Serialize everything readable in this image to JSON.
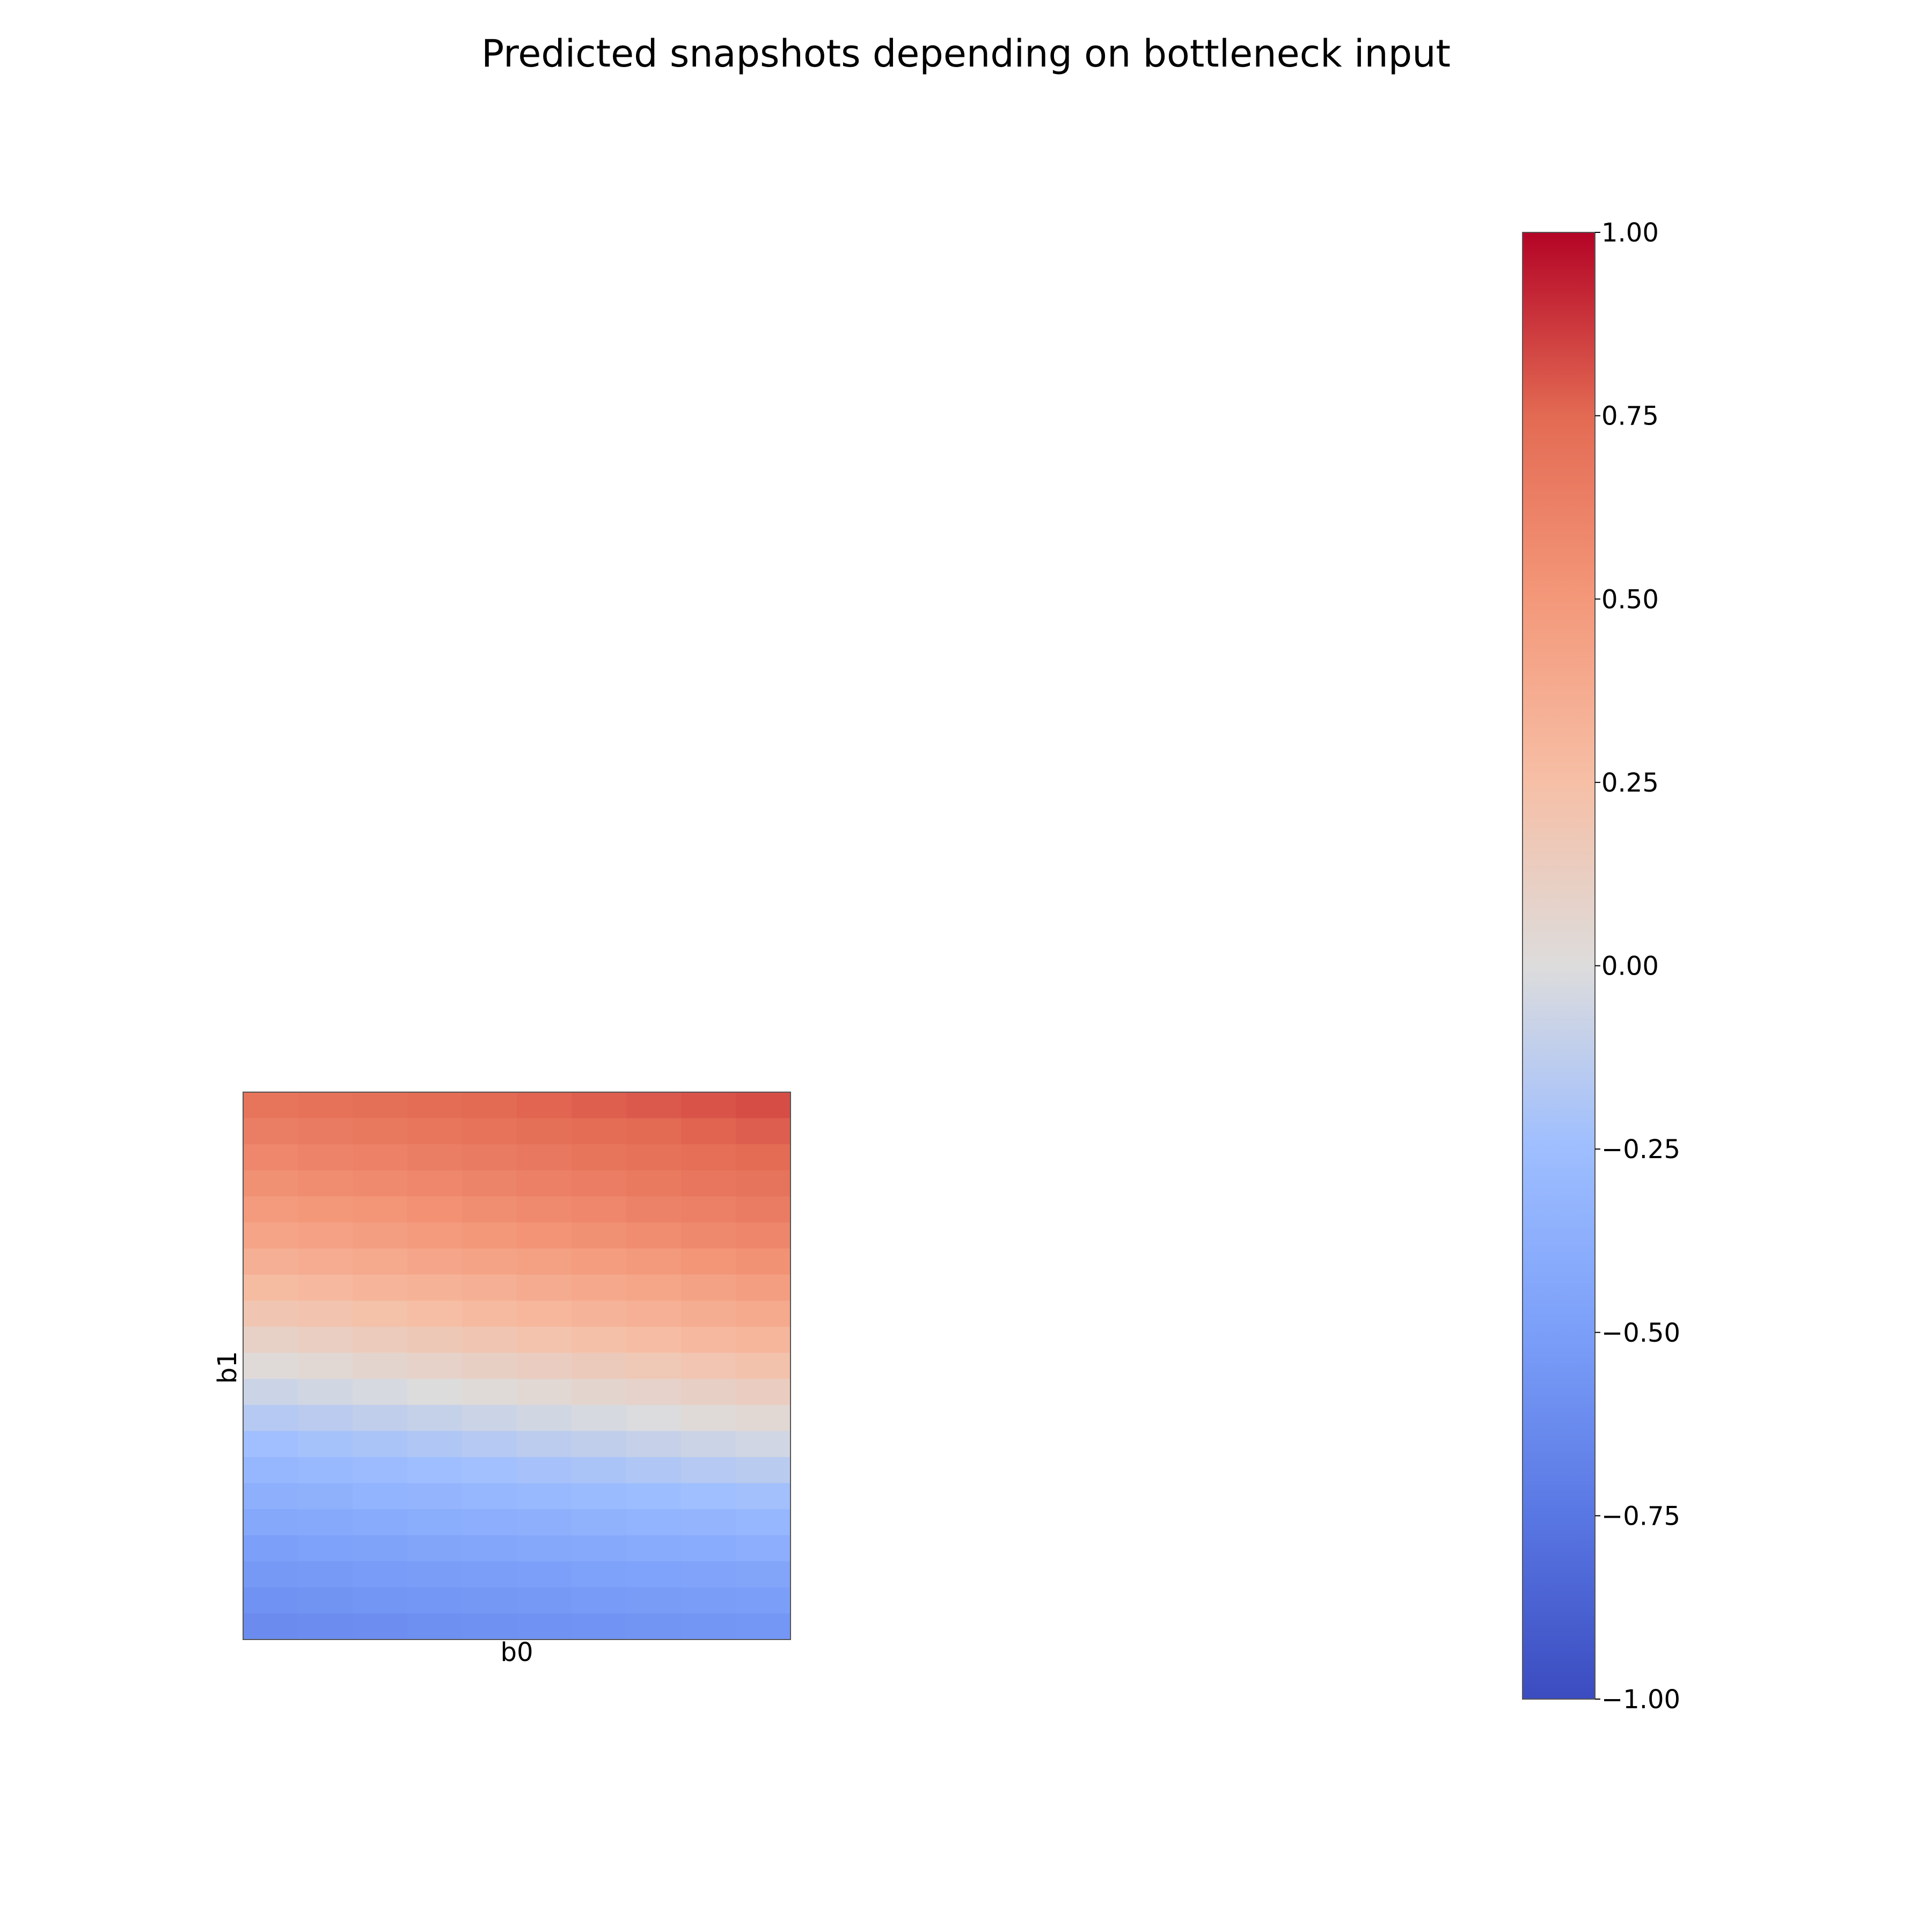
{
  "chart_data": {
    "type": "heatmap",
    "title": "Predicted snapshots depending on bottleneck input",
    "xlabel": "b0",
    "ylabel": "b1",
    "grid": false,
    "colormap": "coolwarm",
    "colorbar": {
      "min": -1.0,
      "max": 1.0,
      "ticks": [
        "1.00",
        "0.75",
        "0.50",
        "0.25",
        "0.00",
        "−0.25",
        "−0.50",
        "−0.75",
        "−1.00"
      ],
      "tick_values": [
        1.0,
        0.75,
        0.5,
        0.25,
        0.0,
        -0.25,
        -0.5,
        -0.75,
        -1.0
      ]
    },
    "n_cols": 10,
    "n_rows": 21,
    "row_left_values": [
      0.69,
      0.64,
      0.59,
      0.54,
      0.48,
      0.42,
      0.35,
      0.27,
      0.19,
      0.1,
      0.02,
      -0.07,
      -0.16,
      -0.24,
      -0.31,
      -0.37,
      -0.43,
      -0.49,
      -0.54,
      -0.58,
      -0.62
    ],
    "row_right_values": [
      0.82,
      0.78,
      0.74,
      0.7,
      0.65,
      0.6,
      0.53,
      0.46,
      0.39,
      0.31,
      0.22,
      0.13,
      0.04,
      -0.05,
      -0.14,
      -0.23,
      -0.31,
      -0.38,
      -0.45,
      -0.5,
      -0.55
    ]
  }
}
